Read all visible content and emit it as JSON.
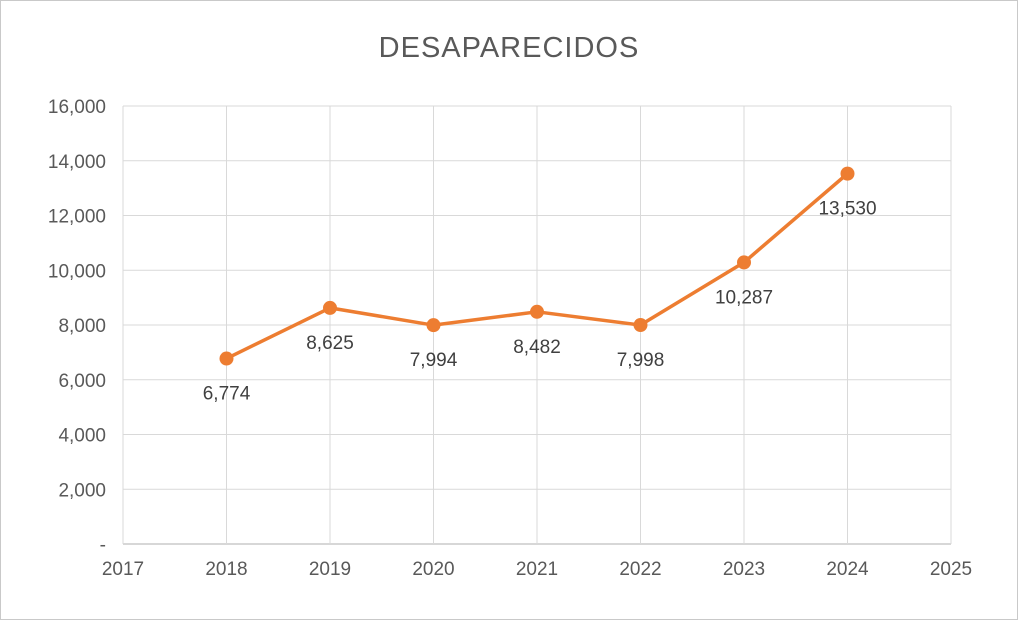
{
  "chart_data": {
    "type": "line",
    "title": "DESAPARECIDOS",
    "x": [
      2018,
      2019,
      2020,
      2021,
      2022,
      2023,
      2024
    ],
    "values": [
      6774,
      8625,
      7994,
      8482,
      7998,
      10287,
      13530
    ],
    "data_labels": [
      "6,774",
      "8,625",
      "7,994",
      "8,482",
      "7,998",
      "10,287",
      "13,530"
    ],
    "x_axis_ticks": [
      "2017",
      "2018",
      "2019",
      "2020",
      "2021",
      "2022",
      "2023",
      "2024",
      "2025"
    ],
    "y_axis_ticks": [
      "-",
      "2,000",
      "4,000",
      "6,000",
      "8,000",
      "10,000",
      "12,000",
      "14,000",
      "16,000"
    ],
    "xlim": [
      2017,
      2025
    ],
    "ylim": [
      0,
      16000
    ],
    "grid": true,
    "legend": "none",
    "line_color": "#ED7D31",
    "marker_color": "#ED7D31",
    "marker": "circle"
  }
}
